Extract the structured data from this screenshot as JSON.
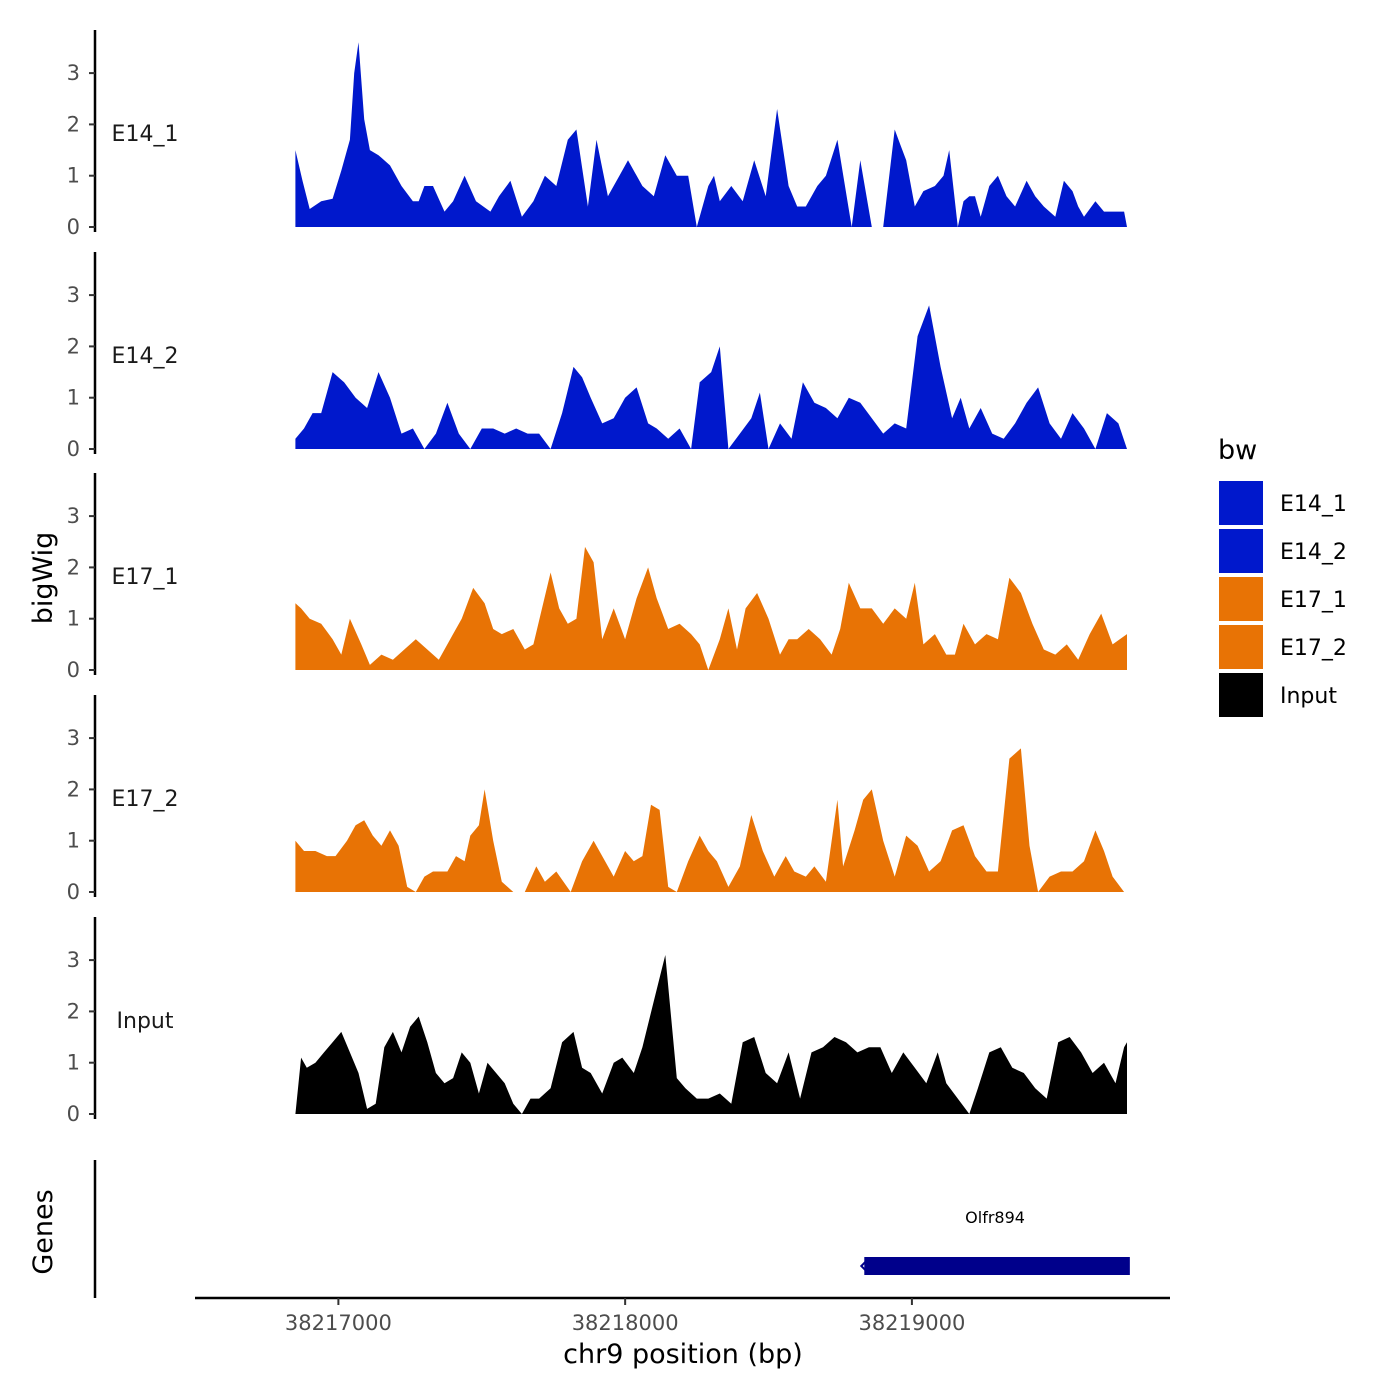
{
  "chart_data": {
    "type": "area",
    "chromosome": "chr9",
    "y_axis_title": "bigWig",
    "x_axis_title": "chr9 position (bp)",
    "genes_axis_title": "Genes",
    "x_range": [
      38216850,
      38219750
    ],
    "x_view": [
      38216500,
      38219900
    ],
    "x_ticks": [
      38217000,
      38218000,
      38219000
    ],
    "y_range": [
      0,
      3.8
    ],
    "y_ticks": [
      0,
      1,
      2,
      3
    ],
    "legend": {
      "title": "bw",
      "entries": [
        {
          "label": "E14_1",
          "color": "#0018CC"
        },
        {
          "label": "E14_2",
          "color": "#0018CC"
        },
        {
          "label": "E17_1",
          "color": "#E87305"
        },
        {
          "label": "E17_2",
          "color": "#E87305"
        },
        {
          "label": "Input",
          "color": "#000000"
        }
      ]
    },
    "series": [
      {
        "name": "E14_1",
        "color": "#0018CC",
        "x": [
          38216850,
          38216875,
          38216900,
          38216940,
          38216980,
          38217010,
          38217040,
          38217055,
          38217070,
          38217090,
          38217110,
          38217140,
          38217180,
          38217220,
          38217260,
          38217280,
          38217300,
          38217330,
          38217370,
          38217400,
          38217440,
          38217480,
          38217530,
          38217560,
          38217600,
          38217640,
          38217680,
          38217720,
          38217760,
          38217800,
          38217830,
          38217870,
          38217900,
          38217940,
          38217980,
          38218010,
          38218060,
          38218100,
          38218140,
          38218180,
          38218220,
          38218250,
          38218290,
          38218310,
          38218330,
          38218370,
          38218410,
          38218450,
          38218490,
          38218530,
          38218570,
          38218600,
          38218630,
          38218670,
          38218700,
          38218740,
          38218790,
          38218820,
          38218860,
          38218900,
          38218940,
          38218960,
          38218980,
          38219010,
          38219040,
          38219080,
          38219110,
          38219130,
          38219160,
          38219180,
          38219200,
          38219220,
          38219240,
          38219270,
          38219300,
          38219330,
          38219360,
          38219400,
          38219430,
          38219460,
          38219500,
          38219530,
          38219560,
          38219580,
          38219600,
          38219640,
          38219670,
          38219710,
          38219740,
          38219750
        ],
        "values": [
          1.5,
          0.9,
          0.35,
          0.5,
          0.55,
          1.1,
          1.7,
          3.0,
          3.6,
          2.1,
          1.5,
          1.4,
          1.2,
          0.8,
          0.5,
          0.5,
          0.8,
          0.8,
          0.3,
          0.5,
          1.0,
          0.5,
          0.3,
          0.6,
          0.9,
          0.2,
          0.5,
          1.0,
          0.8,
          1.7,
          1.9,
          0.4,
          1.7,
          0.6,
          1.0,
          1.3,
          0.8,
          0.6,
          1.4,
          1.0,
          1.0,
          0.0,
          0.8,
          1.0,
          0.5,
          0.8,
          0.5,
          1.3,
          0.6,
          2.3,
          0.8,
          0.4,
          0.4,
          0.8,
          1.0,
          1.7,
          0.0,
          1.3,
          0.0,
          0.0,
          1.9,
          1.6,
          1.3,
          0.4,
          0.7,
          0.8,
          1.0,
          1.5,
          0.0,
          0.5,
          0.6,
          0.6,
          0.2,
          0.8,
          1.0,
          0.6,
          0.4,
          0.9,
          0.6,
          0.4,
          0.2,
          0.9,
          0.7,
          0.4,
          0.2,
          0.5,
          0.3,
          0.3,
          0.3,
          0.0
        ]
      },
      {
        "name": "E14_2",
        "color": "#0018CC",
        "x": [
          38216850,
          38216880,
          38216910,
          38216940,
          38216980,
          38217020,
          38217060,
          38217100,
          38217140,
          38217180,
          38217220,
          38217260,
          38217300,
          38217340,
          38217380,
          38217420,
          38217460,
          38217500,
          38217540,
          38217580,
          38217620,
          38217660,
          38217700,
          38217740,
          38217780,
          38217820,
          38217850,
          38217880,
          38217920,
          38217960,
          38218000,
          38218040,
          38218080,
          38218110,
          38218150,
          38218190,
          38218230,
          38218260,
          38218300,
          38218330,
          38218360,
          38218400,
          38218440,
          38218470,
          38218500,
          38218540,
          38218580,
          38218620,
          38218660,
          38218700,
          38218740,
          38218780,
          38218820,
          38218860,
          38218900,
          38218940,
          38218980,
          38219020,
          38219060,
          38219100,
          38219140,
          38219170,
          38219200,
          38219240,
          38219280,
          38219320,
          38219360,
          38219400,
          38219440,
          38219480,
          38219520,
          38219560,
          38219600,
          38219640,
          38219680,
          38219720,
          38219750
        ],
        "values": [
          0.2,
          0.4,
          0.7,
          0.7,
          1.5,
          1.3,
          1.0,
          0.8,
          1.5,
          1.0,
          0.3,
          0.4,
          0.0,
          0.3,
          0.9,
          0.3,
          0.0,
          0.4,
          0.4,
          0.3,
          0.4,
          0.3,
          0.3,
          0.0,
          0.7,
          1.6,
          1.4,
          1.0,
          0.5,
          0.6,
          1.0,
          1.2,
          0.5,
          0.4,
          0.2,
          0.4,
          0.0,
          1.3,
          1.5,
          2.0,
          0.0,
          0.3,
          0.6,
          1.1,
          0.0,
          0.5,
          0.2,
          1.3,
          0.9,
          0.8,
          0.6,
          1.0,
          0.9,
          0.6,
          0.3,
          0.5,
          0.4,
          2.2,
          2.8,
          1.6,
          0.6,
          1.0,
          0.4,
          0.8,
          0.3,
          0.2,
          0.5,
          0.9,
          1.2,
          0.5,
          0.2,
          0.7,
          0.4,
          0.0,
          0.7,
          0.5,
          0.0
        ]
      },
      {
        "name": "E17_1",
        "color": "#E87305",
        "x": [
          38216850,
          38216870,
          38216900,
          38216940,
          38216980,
          38217010,
          38217040,
          38217080,
          38217110,
          38217150,
          38217190,
          38217230,
          38217270,
          38217310,
          38217350,
          38217390,
          38217430,
          38217470,
          38217510,
          38217540,
          38217570,
          38217610,
          38217650,
          38217680,
          38217710,
          38217740,
          38217770,
          38217800,
          38217830,
          38217860,
          38217890,
          38217920,
          38217960,
          38218000,
          38218040,
          38218080,
          38218110,
          38218150,
          38218190,
          38218230,
          38218260,
          38218290,
          38218330,
          38218360,
          38218390,
          38218420,
          38218460,
          38218500,
          38218540,
          38218570,
          38218600,
          38218640,
          38218680,
          38218720,
          38218750,
          38218780,
          38218820,
          38218860,
          38218900,
          38218940,
          38218980,
          38219010,
          38219040,
          38219080,
          38219120,
          38219150,
          38219180,
          38219220,
          38219260,
          38219300,
          38219340,
          38219380,
          38219420,
          38219460,
          38219500,
          38219540,
          38219580,
          38219620,
          38219660,
          38219700,
          38219750
        ],
        "values": [
          1.3,
          1.2,
          1.0,
          0.9,
          0.6,
          0.3,
          1.0,
          0.5,
          0.1,
          0.3,
          0.2,
          0.4,
          0.6,
          0.4,
          0.2,
          0.6,
          1.0,
          1.6,
          1.3,
          0.8,
          0.7,
          0.8,
          0.4,
          0.5,
          1.2,
          1.9,
          1.2,
          0.9,
          1.0,
          2.4,
          2.1,
          0.6,
          1.2,
          0.6,
          1.4,
          2.0,
          1.4,
          0.8,
          0.9,
          0.7,
          0.5,
          0.0,
          0.6,
          1.2,
          0.4,
          1.2,
          1.5,
          1.0,
          0.3,
          0.6,
          0.6,
          0.8,
          0.6,
          0.3,
          0.8,
          1.7,
          1.2,
          1.2,
          0.9,
          1.2,
          1.0,
          1.7,
          0.5,
          0.7,
          0.3,
          0.3,
          0.9,
          0.5,
          0.7,
          0.6,
          1.8,
          1.5,
          0.9,
          0.4,
          0.3,
          0.5,
          0.2,
          0.7,
          1.1,
          0.5,
          0.7
        ]
      },
      {
        "name": "E17_2",
        "color": "#E87305",
        "x": [
          38216850,
          38216880,
          38216920,
          38216960,
          38216990,
          38217030,
          38217060,
          38217090,
          38217120,
          38217150,
          38217180,
          38217210,
          38217240,
          38217270,
          38217300,
          38217330,
          38217360,
          38217380,
          38217410,
          38217440,
          38217460,
          38217490,
          38217510,
          38217540,
          38217570,
          38217610,
          38217650,
          38217690,
          38217720,
          38217760,
          38217810,
          38217850,
          38217890,
          38217930,
          38217960,
          38218000,
          38218030,
          38218060,
          38218090,
          38218120,
          38218150,
          38218180,
          38218220,
          38218260,
          38218290,
          38218320,
          38218360,
          38218400,
          38218440,
          38218480,
          38218520,
          38218560,
          38218590,
          38218630,
          38218660,
          38218700,
          38218740,
          38218760,
          38218800,
          38218830,
          38218860,
          38218900,
          38218940,
          38218980,
          38219020,
          38219060,
          38219100,
          38219140,
          38219180,
          38219220,
          38219260,
          38219300,
          38219340,
          38219380,
          38219410,
          38219440,
          38219480,
          38219520,
          38219560,
          38219600,
          38219640,
          38219670,
          38219700,
          38219740
        ],
        "values": [
          1.0,
          0.8,
          0.8,
          0.7,
          0.7,
          1.0,
          1.3,
          1.4,
          1.1,
          0.9,
          1.2,
          0.9,
          0.1,
          0.0,
          0.3,
          0.4,
          0.4,
          0.4,
          0.7,
          0.6,
          1.1,
          1.3,
          2.0,
          1.0,
          0.2,
          0.0,
          0.0,
          0.5,
          0.2,
          0.4,
          0.0,
          0.6,
          1.0,
          0.6,
          0.3,
          0.8,
          0.6,
          0.7,
          1.7,
          1.6,
          0.1,
          0.0,
          0.6,
          1.1,
          0.8,
          0.6,
          0.1,
          0.5,
          1.5,
          0.8,
          0.3,
          0.7,
          0.4,
          0.3,
          0.5,
          0.2,
          1.8,
          0.5,
          1.2,
          1.8,
          2.0,
          1.0,
          0.3,
          1.1,
          0.9,
          0.4,
          0.6,
          1.2,
          1.3,
          0.7,
          0.4,
          0.4,
          2.6,
          2.8,
          0.9,
          0.0,
          0.3,
          0.4,
          0.4,
          0.6,
          1.2,
          0.8,
          0.3,
          0.0
        ]
      },
      {
        "name": "Input",
        "color": "#000000",
        "x": [
          38216850,
          38216870,
          38216890,
          38216920,
          38216950,
          38216980,
          38217010,
          38217040,
          38217070,
          38217100,
          38217130,
          38217160,
          38217190,
          38217220,
          38217250,
          38217280,
          38217310,
          38217340,
          38217370,
          38217400,
          38217430,
          38217460,
          38217490,
          38217520,
          38217550,
          38217580,
          38217610,
          38217640,
          38217670,
          38217700,
          38217740,
          38217780,
          38217820,
          38217850,
          38217880,
          38217920,
          38217960,
          38217990,
          38218030,
          38218060,
          38218100,
          38218140,
          38218180,
          38218210,
          38218250,
          38218290,
          38218330,
          38218370,
          38218410,
          38218450,
          38218490,
          38218530,
          38218570,
          38218610,
          38218650,
          38218690,
          38218730,
          38218770,
          38218810,
          38218850,
          38218890,
          38218930,
          38218970,
          38219010,
          38219050,
          38219090,
          38219120,
          38219160,
          38219200,
          38219230,
          38219270,
          38219310,
          38219350,
          38219390,
          38219430,
          38219470,
          38219510,
          38219550,
          38219590,
          38219630,
          38219670,
          38219710,
          38219740,
          38219750
        ],
        "values": [
          0.0,
          1.1,
          0.9,
          1.0,
          1.2,
          1.4,
          1.6,
          1.2,
          0.8,
          0.1,
          0.2,
          1.3,
          1.6,
          1.2,
          1.7,
          1.9,
          1.4,
          0.8,
          0.6,
          0.7,
          1.2,
          1.0,
          0.4,
          1.0,
          0.8,
          0.6,
          0.2,
          0.0,
          0.3,
          0.3,
          0.5,
          1.4,
          1.6,
          0.9,
          0.8,
          0.4,
          1.0,
          1.1,
          0.8,
          1.3,
          2.2,
          3.1,
          0.7,
          0.5,
          0.3,
          0.3,
          0.4,
          0.2,
          1.4,
          1.5,
          0.8,
          0.6,
          1.2,
          0.3,
          1.2,
          1.3,
          1.5,
          1.4,
          1.2,
          1.3,
          1.3,
          0.8,
          1.2,
          0.9,
          0.6,
          1.2,
          0.6,
          0.3,
          0.0,
          0.5,
          1.2,
          1.3,
          0.9,
          0.8,
          0.5,
          0.3,
          1.4,
          1.5,
          1.2,
          0.8,
          1.0,
          0.6,
          1.3,
          1.4
        ]
      }
    ],
    "genes": [
      {
        "name": "Olfr894",
        "start": 38218820,
        "end": 38219760,
        "strand": "-"
      }
    ]
  }
}
